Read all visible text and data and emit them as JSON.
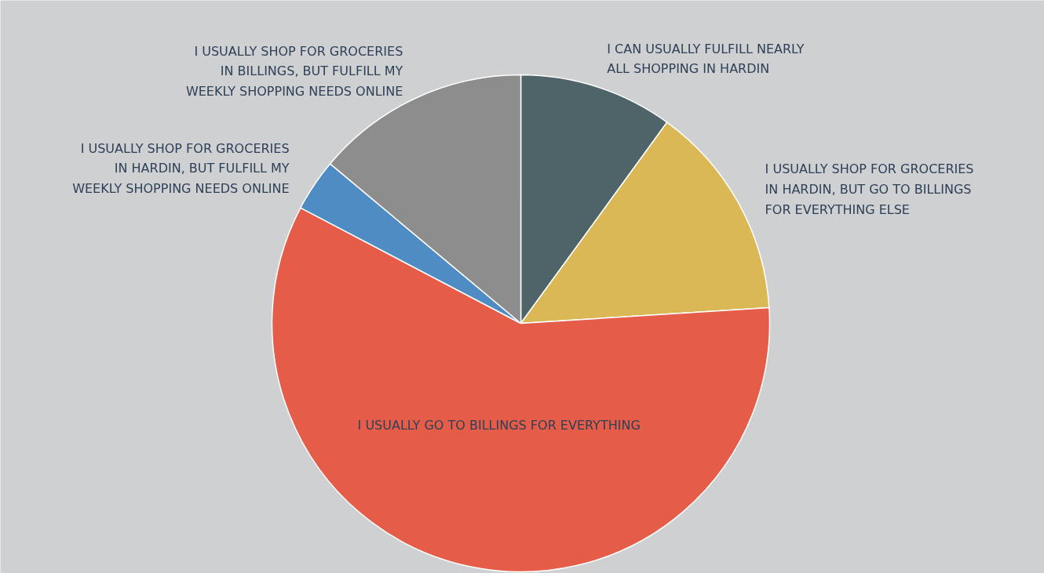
{
  "chart_data": {
    "type": "pie",
    "categories": [
      "I CAN USUALLY FULFILL NEARLY\nALL SHOPPING IN HARDIN",
      "I USUALLY SHOP FOR GROCERIES\nIN HARDIN,  BUT GO TO BILLINGS\nFOR  EVERYTHING ELSE",
      "I USUALLY GO TO BILLINGS FOR EVERYTHING",
      "I USUALLY SHOP FOR GROCERIES\nIN HARDIN, BUT FULFILL MY\nWEEKLY SHOPPING NEEDS ONLINE",
      "I USUALLY SHOP FOR GROCERIES\nIN BILLINGS, BUT FULFILL MY\nWEEKLY SHOPPING NEEDS ONLINE"
    ],
    "values": [
      10,
      14,
      58.7,
      3.4,
      13.9
    ],
    "colors": [
      "#4e6469",
      "#dab855",
      "#e55c48",
      "#4f8cc4",
      "#8d8d8d"
    ]
  }
}
